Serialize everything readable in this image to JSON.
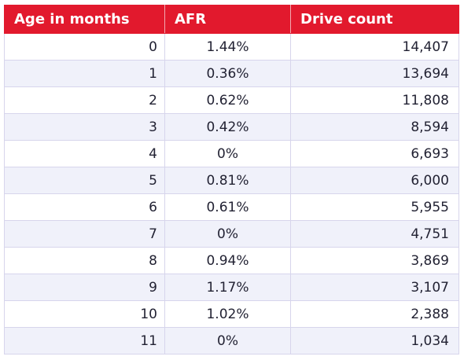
{
  "chart_data": {
    "type": "table",
    "columns": [
      "Age in months",
      "AFR",
      "Drive count"
    ],
    "rows": [
      {
        "age": "0",
        "afr": "1.44%",
        "count": "14,407"
      },
      {
        "age": "1",
        "afr": "0.36%",
        "count": "13,694"
      },
      {
        "age": "2",
        "afr": "0.62%",
        "count": "11,808"
      },
      {
        "age": "3",
        "afr": "0.42%",
        "count": "8,594"
      },
      {
        "age": "4",
        "afr": "0%",
        "count": "6,693"
      },
      {
        "age": "5",
        "afr": "0.81%",
        "count": "6,000"
      },
      {
        "age": "6",
        "afr": "0.61%",
        "count": "5,955"
      },
      {
        "age": "7",
        "afr": "0%",
        "count": "4,751"
      },
      {
        "age": "8",
        "afr": "0.94%",
        "count": "3,869"
      },
      {
        "age": "9",
        "afr": "1.17%",
        "count": "3,107"
      },
      {
        "age": "10",
        "afr": "1.02%",
        "count": "2,388"
      },
      {
        "age": "11",
        "afr": "0%",
        "count": "1,034"
      }
    ],
    "colors": {
      "header_background": "#e2192d",
      "header_text": "#ffffff",
      "stripe": "#f0f1fa",
      "border": "#d7d5ec"
    }
  }
}
